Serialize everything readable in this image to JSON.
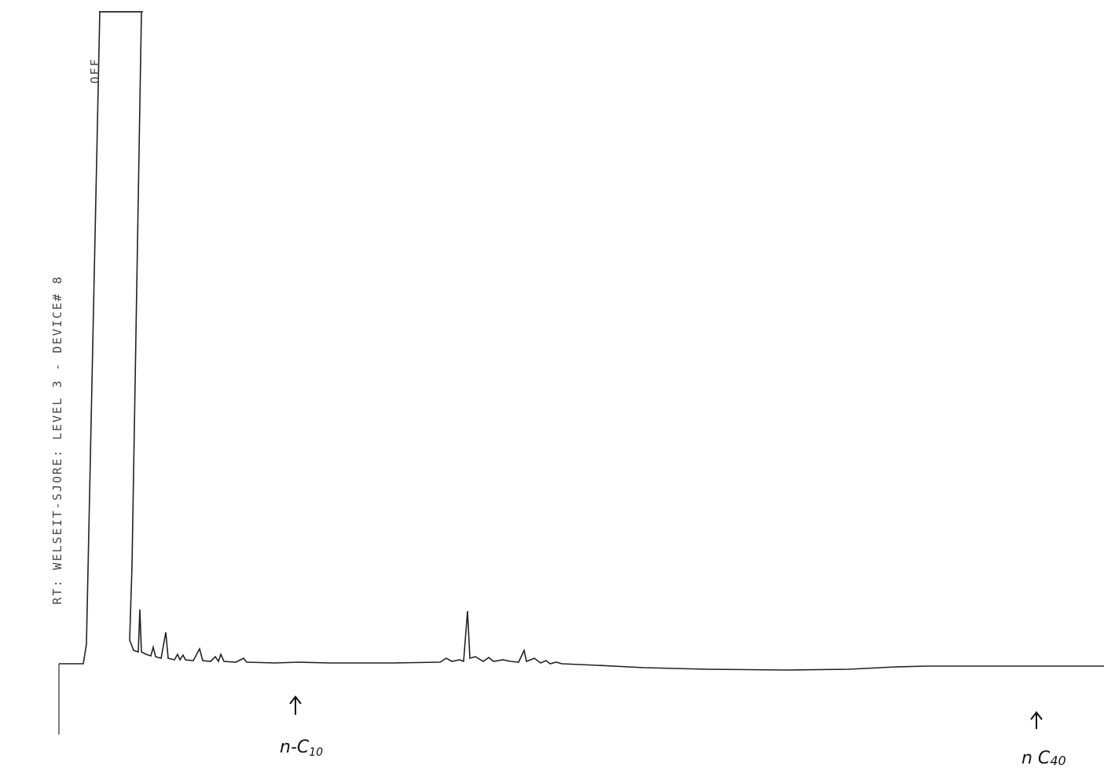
{
  "header": {
    "text": "RT: WELSEIT-SJORE: LEVEL 3 - DEVICE# 8",
    "status": "OFF"
  },
  "annotations": [
    {
      "label": "n-C",
      "sub": "10"
    },
    {
      "label": "n C",
      "sub": "40"
    }
  ]
}
